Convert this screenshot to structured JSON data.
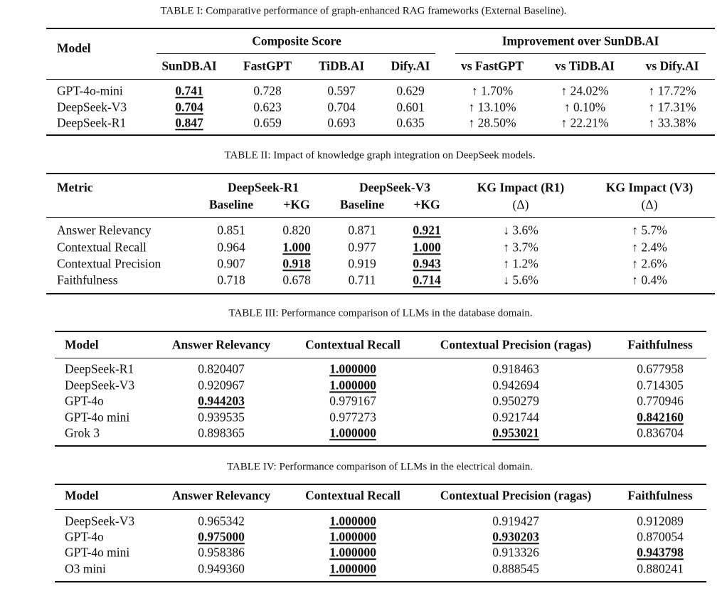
{
  "table1": {
    "caption": "TABLE I: Comparative performance of graph-enhanced RAG frameworks (External Baseline).",
    "model_header": "Model",
    "group_headers": [
      "Composite Score",
      "Improvement over SunDB.AI"
    ],
    "columns": [
      "SunDB.AI",
      "FastGPT",
      "TiDB.AI",
      "Dify.AI",
      "vs FastGPT",
      "vs TiDB.AI",
      "vs Dify.AI"
    ],
    "rows": [
      {
        "model": "GPT-4o-mini",
        "cells": [
          "0.741",
          "0.728",
          "0.597",
          "0.629",
          "↑ 1.70%",
          "↑ 24.02%",
          "↑ 17.72%"
        ],
        "best": [
          0
        ]
      },
      {
        "model": "DeepSeek-V3",
        "cells": [
          "0.704",
          "0.623",
          "0.704",
          "0.601",
          "↑ 13.10%",
          "↑ 0.10%",
          "↑ 17.31%"
        ],
        "best": [
          0
        ]
      },
      {
        "model": "DeepSeek-R1",
        "cells": [
          "0.847",
          "0.659",
          "0.693",
          "0.635",
          "↑ 28.50%",
          "↑ 22.21%",
          "↑ 33.38%"
        ],
        "best": [
          0
        ]
      }
    ]
  },
  "table2": {
    "caption": "TABLE II: Impact of knowledge graph integration on DeepSeek models.",
    "metric_header": "Metric",
    "group_headers": [
      "DeepSeek-R1",
      "DeepSeek-V3",
      "KG Impact (R1)",
      "KG Impact (V3)"
    ],
    "columns": [
      "Baseline",
      "+KG",
      "Baseline",
      "+KG",
      "(Δ)",
      "(Δ)"
    ],
    "rows": [
      {
        "model": "Answer Relevancy",
        "cells": [
          "0.851",
          "0.820",
          "0.871",
          "0.921",
          "↓ 3.6%",
          "↑ 5.7%"
        ],
        "best": [
          3
        ]
      },
      {
        "model": "Contextual Recall",
        "cells": [
          "0.964",
          "1.000",
          "0.977",
          "1.000",
          "↑ 3.7%",
          "↑ 2.4%"
        ],
        "best": [
          1,
          3
        ]
      },
      {
        "model": "Contextual Precision",
        "cells": [
          "0.907",
          "0.918",
          "0.919",
          "0.943",
          "↑ 1.2%",
          "↑ 2.6%"
        ],
        "best": [
          1,
          3
        ]
      },
      {
        "model": "Faithfulness",
        "cells": [
          "0.718",
          "0.678",
          "0.711",
          "0.714",
          "↓ 5.6%",
          "↑ 0.4%"
        ],
        "best": [
          3
        ]
      }
    ]
  },
  "table3": {
    "caption": "TABLE III: Performance comparison of LLMs in the database domain.",
    "model_header": "Model",
    "columns": [
      "Answer Relevancy",
      "Contextual Recall",
      "Contextual Precision (ragas)",
      "Faithfulness"
    ],
    "rows": [
      {
        "model": "DeepSeek-R1",
        "cells": [
          "0.820407",
          "1.000000",
          "0.918463",
          "0.677958"
        ],
        "best": [
          1
        ]
      },
      {
        "model": "DeepSeek-V3",
        "cells": [
          "0.920967",
          "1.000000",
          "0.942694",
          "0.714305"
        ],
        "best": [
          1
        ]
      },
      {
        "model": "GPT-4o",
        "cells": [
          "0.944203",
          "0.979167",
          "0.950279",
          "0.770946"
        ],
        "best": [
          0
        ]
      },
      {
        "model": "GPT-4o mini",
        "cells": [
          "0.939535",
          "0.977273",
          "0.921744",
          "0.842160"
        ],
        "best": [
          3
        ]
      },
      {
        "model": "Grok 3",
        "cells": [
          "0.898365",
          "1.000000",
          "0.953021",
          "0.836704"
        ],
        "best": [
          1,
          2
        ]
      }
    ]
  },
  "table4": {
    "caption": "TABLE IV: Performance comparison of LLMs in the electrical domain.",
    "model_header": "Model",
    "columns": [
      "Answer Relevancy",
      "Contextual Recall",
      "Contextual Precision (ragas)",
      "Faithfulness"
    ],
    "rows": [
      {
        "model": "DeepSeek-V3",
        "cells": [
          "0.965342",
          "1.000000",
          "0.919427",
          "0.912089"
        ],
        "best": [
          1
        ]
      },
      {
        "model": "GPT-4o",
        "cells": [
          "0.975000",
          "1.000000",
          "0.930203",
          "0.870054"
        ],
        "best": [
          0,
          1,
          2
        ]
      },
      {
        "model": "GPT-4o mini",
        "cells": [
          "0.958386",
          "1.000000",
          "0.913326",
          "0.943798"
        ],
        "best": [
          1,
          3
        ]
      },
      {
        "model": "O3 mini",
        "cells": [
          "0.949360",
          "1.000000",
          "0.888545",
          "0.880241"
        ],
        "best": [
          1
        ]
      }
    ]
  }
}
